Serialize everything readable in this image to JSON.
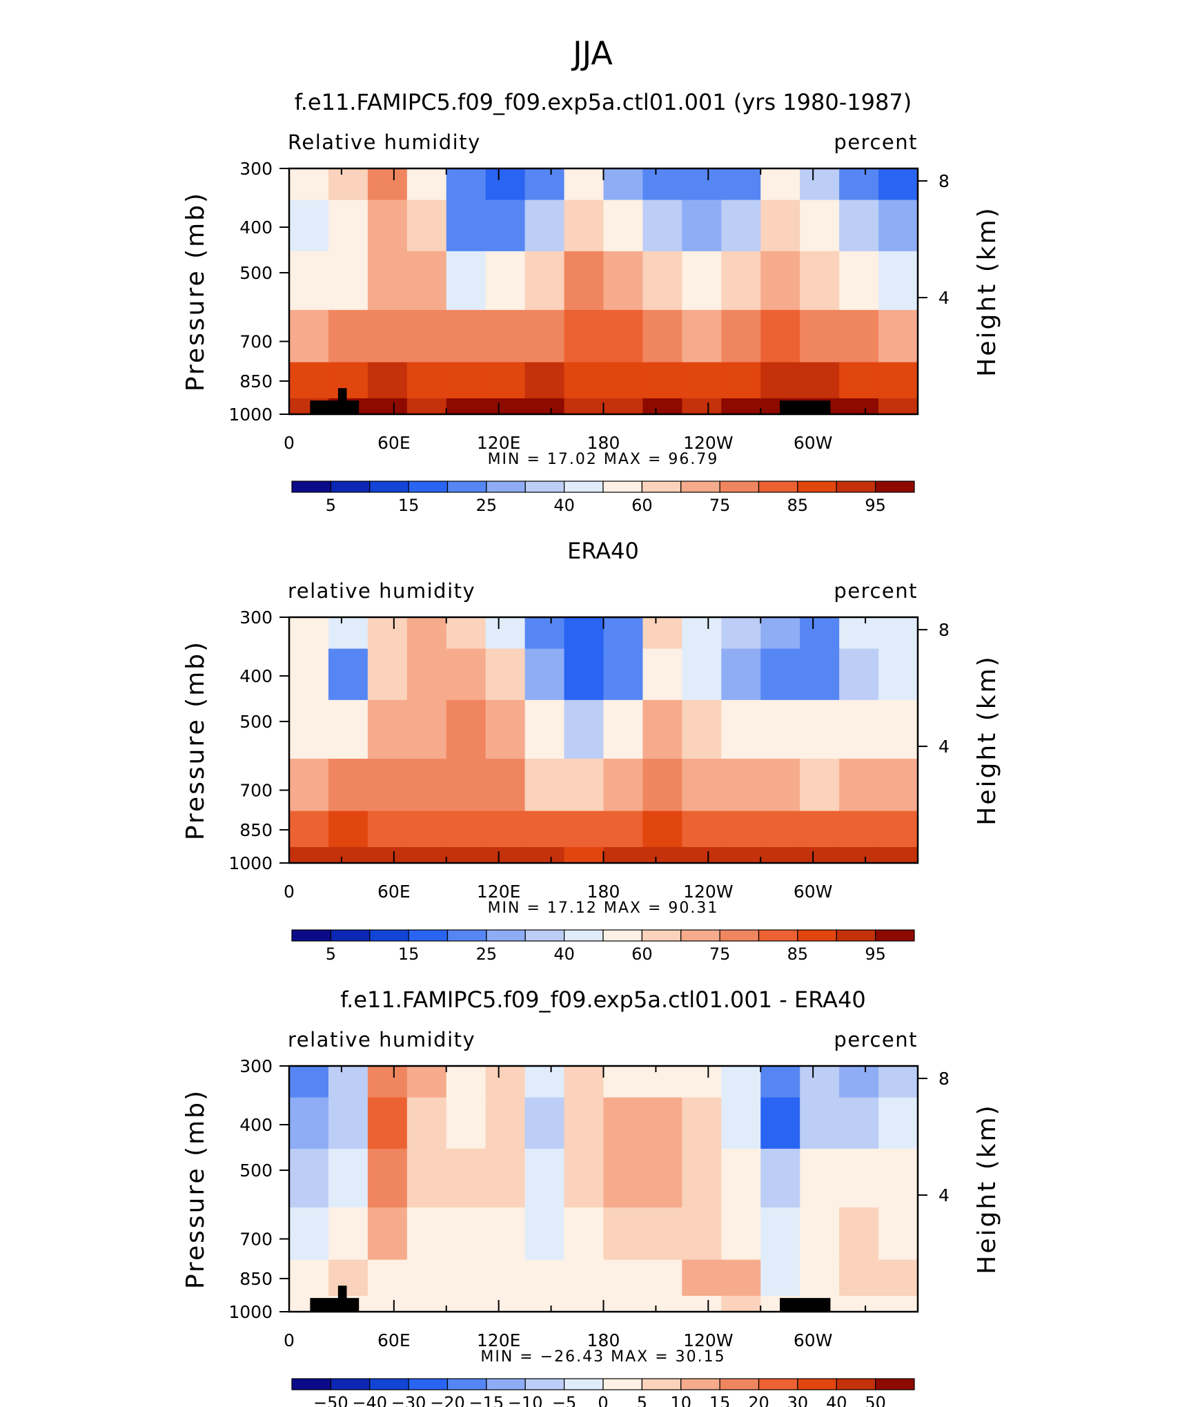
{
  "page_title": "JJA",
  "chart_data": [
    {
      "type": "heatmap",
      "title": "f.e11.FAMIPC5.f09_f09.exp5a.ctl01.001 (yrs 1980-1987)",
      "left_label": "Relative humidity",
      "right_label": "percent",
      "ylabel": "Pressure (mb)",
      "ylabel_right": "Height (km)",
      "y_ticks": [
        "300",
        "400",
        "500",
        "700",
        "850",
        "1000"
      ],
      "y_tick_values": [
        300,
        400,
        500,
        700,
        850,
        1000
      ],
      "y_right_ticks": [
        "8",
        "4"
      ],
      "y_right_values": [
        8,
        4
      ],
      "x_ticks": [
        "0",
        "60E",
        "120E",
        "180",
        "120W",
        "60W"
      ],
      "x_tick_values": [
        0,
        60,
        120,
        180,
        240,
        300
      ],
      "xlim": [
        0,
        360
      ],
      "ylim": [
        300,
        1000
      ],
      "stats_label": "MIN = 17.02 MAX = 96.79",
      "min": 17.02,
      "max": 96.79,
      "colorbar_labels": [
        "5",
        "15",
        "25",
        "40",
        "60",
        "75",
        "85",
        "95"
      ],
      "colorbar_colors": [
        "#0b0b8a",
        "#0c27b4",
        "#1245d6",
        "#2a64f2",
        "#5586f4",
        "#8eadf5",
        "#bccdf6",
        "#e1ecfb",
        "#fdf0e4",
        "#fbd2bb",
        "#f6ab8c",
        "#f08660",
        "#ec6232",
        "#e2460f",
        "#c4310a",
        "#8e0a00"
      ],
      "highland": true,
      "field": [
        [
          55,
          60,
          72,
          55,
          28,
          22,
          28,
          55,
          38,
          32,
          28,
          30,
          52,
          40,
          30,
          25
        ],
        [
          48,
          50,
          64,
          60,
          30,
          32,
          40,
          60,
          50,
          42,
          38,
          42,
          58,
          50,
          40,
          35
        ],
        [
          52,
          55,
          62,
          62,
          48,
          50,
          58,
          70,
          66,
          60,
          55,
          58,
          64,
          60,
          52,
          48
        ],
        [
          62,
          72,
          72,
          70,
          68,
          68,
          72,
          74,
          74,
          70,
          65,
          70,
          76,
          72,
          68,
          65
        ],
        [
          80,
          82,
          84,
          80,
          80,
          82,
          84,
          82,
          80,
          80,
          80,
          82,
          84,
          84,
          82,
          82
        ],
        [
          88,
          90,
          90,
          88,
          90,
          90,
          90,
          88,
          88,
          90,
          88,
          90,
          90,
          90,
          90,
          88
        ]
      ]
    },
    {
      "type": "heatmap",
      "title": "ERA40",
      "left_label": "relative humidity",
      "right_label": "percent",
      "ylabel": "Pressure (mb)",
      "ylabel_right": "Height (km)",
      "y_ticks": [
        "300",
        "400",
        "500",
        "700",
        "850",
        "1000"
      ],
      "y_tick_values": [
        300,
        400,
        500,
        700,
        850,
        1000
      ],
      "y_right_ticks": [
        "8",
        "4"
      ],
      "y_right_values": [
        8,
        4
      ],
      "x_ticks": [
        "0",
        "60E",
        "120E",
        "180",
        "120W",
        "60W"
      ],
      "x_tick_values": [
        0,
        60,
        120,
        180,
        240,
        300
      ],
      "xlim": [
        0,
        360
      ],
      "ylim": [
        300,
        1000
      ],
      "stats_label": "MIN = 17.12 MAX = 90.31",
      "min": 17.12,
      "max": 90.31,
      "colorbar_labels": [
        "5",
        "15",
        "25",
        "40",
        "60",
        "75",
        "85",
        "95"
      ],
      "colorbar_colors": [
        "#0b0b8a",
        "#0c27b4",
        "#1245d6",
        "#2a64f2",
        "#5586f4",
        "#8eadf5",
        "#bccdf6",
        "#e1ecfb",
        "#fdf0e4",
        "#fbd2bb",
        "#f6ab8c",
        "#f08660",
        "#ec6232",
        "#e2460f",
        "#c4310a",
        "#8e0a00"
      ],
      "highland": false,
      "field": [
        [
          55,
          45,
          60,
          62,
          60,
          48,
          28,
          22,
          28,
          58,
          45,
          40,
          35,
          30,
          45,
          48
        ],
        [
          50,
          30,
          60,
          62,
          62,
          58,
          36,
          22,
          30,
          55,
          45,
          38,
          32,
          28,
          42,
          45
        ],
        [
          52,
          50,
          64,
          64,
          68,
          62,
          50,
          40,
          50,
          66,
          56,
          52,
          50,
          50,
          54,
          55
        ],
        [
          62,
          70,
          68,
          68,
          70,
          68,
          60,
          58,
          62,
          70,
          66,
          64,
          62,
          60,
          64,
          66
        ],
        [
          74,
          80,
          74,
          74,
          78,
          76,
          74,
          74,
          76,
          80,
          78,
          76,
          76,
          76,
          78,
          78
        ],
        [
          84,
          86,
          86,
          84,
          86,
          86,
          84,
          82,
          84,
          86,
          86,
          84,
          84,
          84,
          84,
          84
        ]
      ]
    },
    {
      "type": "heatmap",
      "title": "f.e11.FAMIPC5.f09_f09.exp5a.ctl01.001 - ERA40",
      "left_label": "relative humidity",
      "right_label": "percent",
      "ylabel": "Pressure (mb)",
      "ylabel_right": "Height (km)",
      "y_ticks": [
        "300",
        "400",
        "500",
        "700",
        "850",
        "1000"
      ],
      "y_tick_values": [
        300,
        400,
        500,
        700,
        850,
        1000
      ],
      "y_right_ticks": [
        "8",
        "4"
      ],
      "y_right_values": [
        8,
        4
      ],
      "x_ticks": [
        "0",
        "60E",
        "120E",
        "180",
        "120W",
        "60W"
      ],
      "x_tick_values": [
        0,
        60,
        120,
        180,
        240,
        300
      ],
      "xlim": [
        0,
        360
      ],
      "ylim": [
        300,
        1000
      ],
      "stats_label": "MIN = −26.43 MAX = 30.15",
      "min": -26.43,
      "max": 30.15,
      "colorbar_labels": [
        "−50",
        "−40",
        "−30",
        "−20",
        "−15",
        "−10",
        "−5",
        "0",
        "5",
        "10",
        "15",
        "20",
        "30",
        "40",
        "50"
      ],
      "colorbar_colors": [
        "#0b0b8a",
        "#0c27b4",
        "#1245d6",
        "#2a64f2",
        "#5586f4",
        "#8eadf5",
        "#bccdf6",
        "#e1ecfb",
        "#fdf0e4",
        "#fbd2bb",
        "#f6ab8c",
        "#f08660",
        "#ec6232",
        "#e2460f",
        "#c4310a",
        "#8e0a00"
      ],
      "highland": true,
      "field": [
        [
          -18,
          -8,
          18,
          10,
          3,
          6,
          -4,
          6,
          3,
          4,
          4,
          -2,
          -18,
          -8,
          -14,
          -6
        ],
        [
          -12,
          -6,
          22,
          8,
          4,
          8,
          -6,
          8,
          10,
          12,
          6,
          -4,
          -22,
          -6,
          -10,
          -4
        ],
        [
          -8,
          -4,
          18,
          6,
          6,
          6,
          -4,
          6,
          10,
          12,
          6,
          2,
          -10,
          2,
          4,
          2
        ],
        [
          -4,
          2,
          10,
          4,
          2,
          4,
          -2,
          4,
          6,
          8,
          8,
          4,
          -4,
          4,
          8,
          4
        ],
        [
          2,
          6,
          4,
          2,
          2,
          2,
          2,
          2,
          4,
          4,
          10,
          10,
          -2,
          4,
          6,
          6
        ],
        [
          4,
          2,
          2,
          2,
          0,
          2,
          2,
          4,
          4,
          4,
          4,
          6,
          2,
          4,
          4,
          2
        ]
      ]
    }
  ]
}
